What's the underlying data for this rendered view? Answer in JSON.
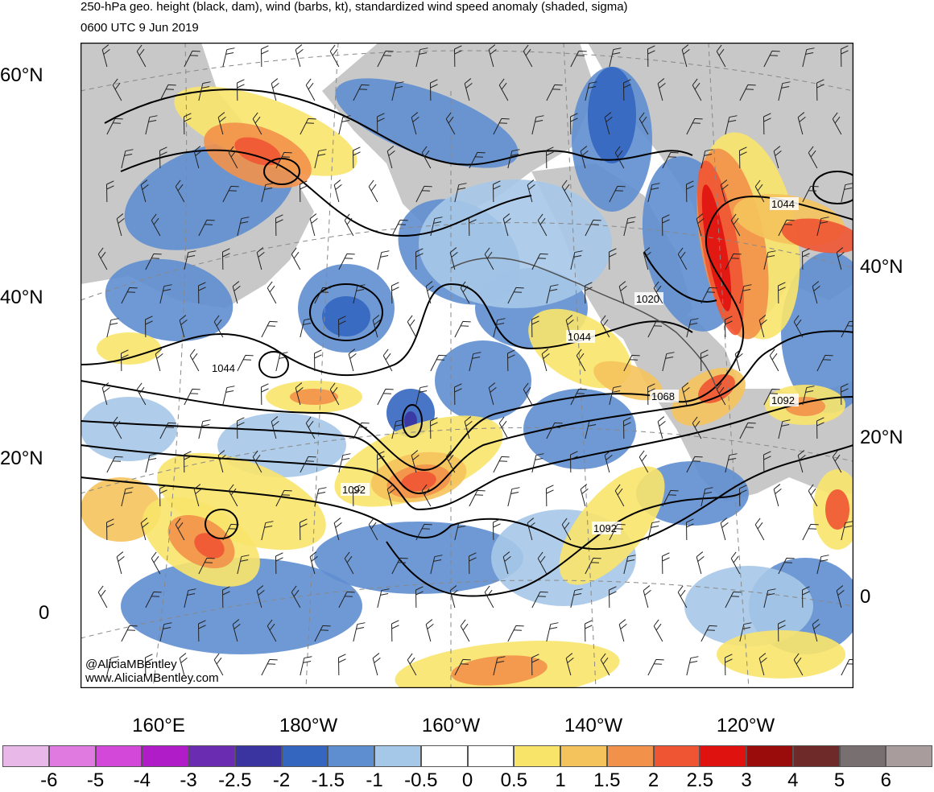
{
  "title": "250-hPa geo. height (black, dam), wind (barbs, kt), standardized wind speed anomaly (shaded, sigma)",
  "valid_time": "0600 UTC 9 Jun 2019",
  "credits": [
    "@AliciaMBentley",
    "www.AliciaMBentley.com"
  ],
  "lat_labels_left": [
    "60°N",
    "40°N",
    "20°N",
    "0"
  ],
  "lat_labels_right": [
    "40°N",
    "20°N",
    "0"
  ],
  "lon_labels": [
    "160°E",
    "180°W",
    "160°W",
    "140°W",
    "120°W"
  ],
  "contour_labels": [
    "1044",
    "1020",
    "1044",
    "1068",
    "1092",
    "1092",
    "1092",
    "1044"
  ],
  "colorbar": {
    "levels": [
      "-6",
      "-5",
      "-4",
      "-3",
      "-2.5",
      "-2",
      "-1.5",
      "-1",
      "-0.5",
      "0",
      "0.5",
      "1",
      "1.5",
      "2",
      "2.5",
      "3",
      "4",
      "5",
      "6"
    ],
    "colors": [
      "#e8b8e8",
      "#e07ae0",
      "#d348d8",
      "#b01cc8",
      "#6a2cb0",
      "#3a34a0",
      "#3466c0",
      "#5f8ed0",
      "#a6c8e8",
      "#ffffff",
      "#ffffff",
      "#f9e46a",
      "#f5c35c",
      "#f2914a",
      "#ef5533",
      "#e0120f",
      "#9a0c0c",
      "#6e2a28",
      "#787070",
      "#a89c9c"
    ]
  },
  "colors": {
    "land": "#c8c8c8",
    "coast": "#505050",
    "contour": "#000000",
    "grid": "#888888"
  }
}
